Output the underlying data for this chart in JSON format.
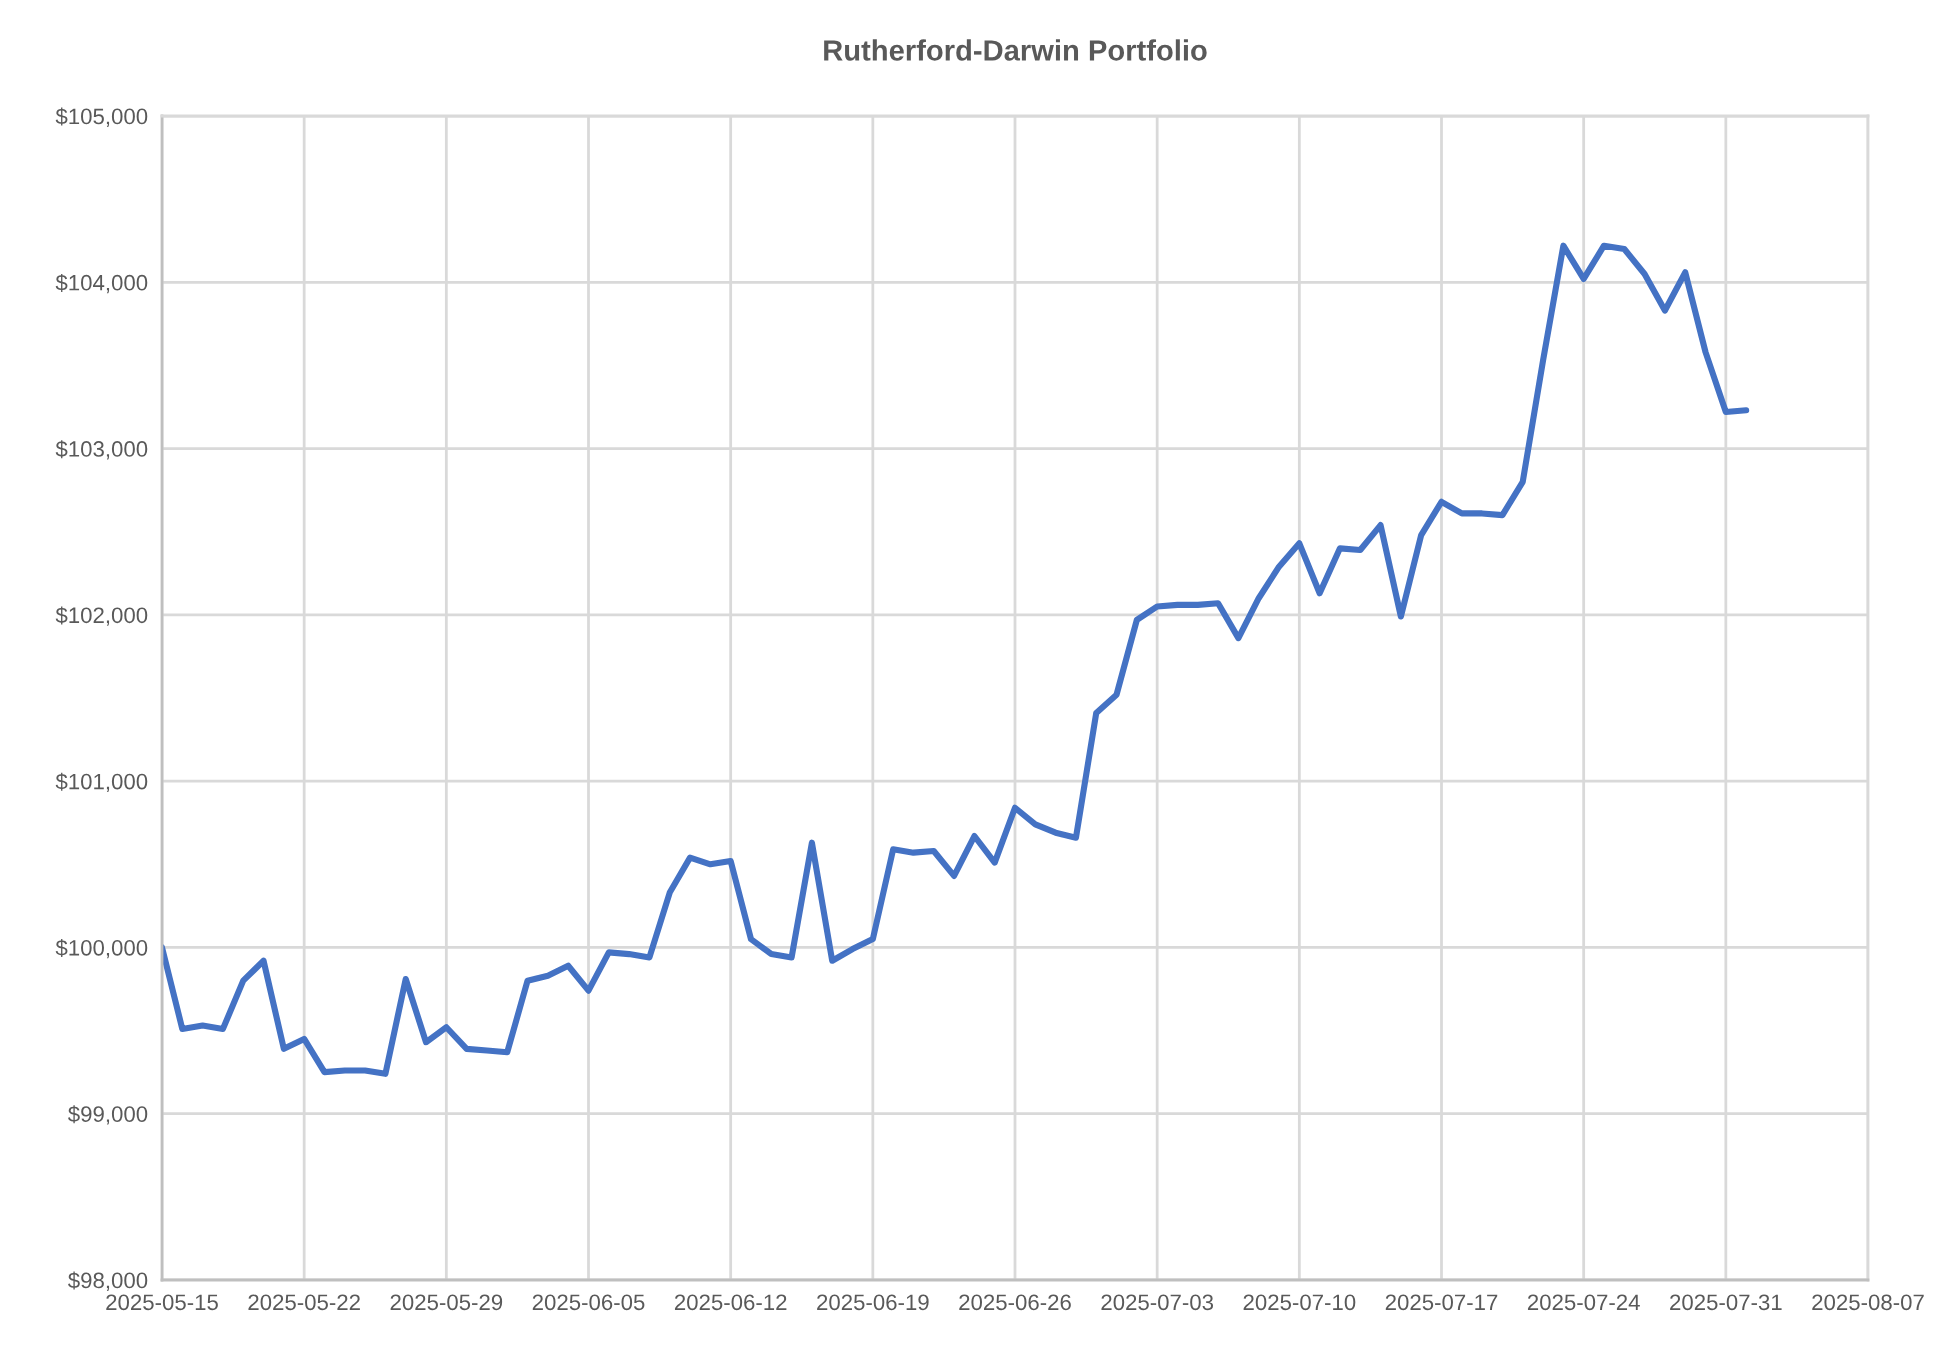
{
  "chart_data": {
    "type": "line",
    "title": "Rutherford-Darwin Portfolio",
    "x": [
      "2025-05-15",
      "2025-05-16",
      "2025-05-17",
      "2025-05-18",
      "2025-05-19",
      "2025-05-20",
      "2025-05-21",
      "2025-05-22",
      "2025-05-23",
      "2025-05-24",
      "2025-05-25",
      "2025-05-26",
      "2025-05-27",
      "2025-05-28",
      "2025-05-29",
      "2025-05-30",
      "2025-05-31",
      "2025-06-01",
      "2025-06-02",
      "2025-06-03",
      "2025-06-04",
      "2025-06-05",
      "2025-06-06",
      "2025-06-07",
      "2025-06-08",
      "2025-06-09",
      "2025-06-10",
      "2025-06-11",
      "2025-06-12",
      "2025-06-13",
      "2025-06-14",
      "2025-06-15",
      "2025-06-16",
      "2025-06-17",
      "2025-06-18",
      "2025-06-19",
      "2025-06-20",
      "2025-06-21",
      "2025-06-22",
      "2025-06-23",
      "2025-06-24",
      "2025-06-25",
      "2025-06-26",
      "2025-06-27",
      "2025-06-28",
      "2025-06-29",
      "2025-06-30",
      "2025-07-01",
      "2025-07-02",
      "2025-07-03",
      "2025-07-04",
      "2025-07-05",
      "2025-07-06",
      "2025-07-07",
      "2025-07-08",
      "2025-07-09",
      "2025-07-10",
      "2025-07-11",
      "2025-07-12",
      "2025-07-13",
      "2025-07-14",
      "2025-07-15",
      "2025-07-16",
      "2025-07-17",
      "2025-07-18",
      "2025-07-19",
      "2025-07-20",
      "2025-07-21",
      "2025-07-22",
      "2025-07-23",
      "2025-07-24",
      "2025-07-25",
      "2025-07-26",
      "2025-07-27",
      "2025-07-28",
      "2025-07-29",
      "2025-07-30",
      "2025-07-31",
      "2025-08-01"
    ],
    "series": [
      {
        "color": "#4472c4",
        "values": [
          100000,
          99510,
          99530,
          99510,
          99800,
          99920,
          99390,
          99450,
          99250,
          99260,
          99260,
          99240,
          99810,
          99430,
          99520,
          99390,
          99380,
          99370,
          99800,
          99830,
          99890,
          99740,
          99970,
          99960,
          99940,
          100330,
          100540,
          100500,
          100520,
          100050,
          99960,
          99940,
          100630,
          99920,
          99990,
          100050,
          100590,
          100570,
          100580,
          100430,
          100670,
          100510,
          100840,
          100740,
          100690,
          100660,
          101410,
          101520,
          101970,
          102050,
          102060,
          102060,
          102070,
          101860,
          102100,
          102290,
          102430,
          102130,
          102400,
          102390,
          102540,
          101990,
          102480,
          102680,
          102610,
          102610,
          102600,
          102800,
          103530,
          104220,
          104020,
          104220,
          104200,
          104050,
          103830,
          104060,
          103580,
          103220,
          103230
        ]
      }
    ],
    "xlim": [
      "2025-05-15",
      "2025-08-07"
    ],
    "xticks": [
      "2025-05-15",
      "2025-05-22",
      "2025-05-29",
      "2025-06-05",
      "2025-06-12",
      "2025-06-19",
      "2025-06-26",
      "2025-07-03",
      "2025-07-10",
      "2025-07-17",
      "2025-07-24",
      "2025-07-31",
      "2025-08-07"
    ],
    "ylim": [
      98000,
      105000
    ],
    "yticks": [
      {
        "value": 98000,
        "label": "$98,000"
      },
      {
        "value": 99000,
        "label": "$99,000"
      },
      {
        "value": 100000,
        "label": "$100,000"
      },
      {
        "value": 101000,
        "label": "$101,000"
      },
      {
        "value": 102000,
        "label": "$102,000"
      },
      {
        "value": 103000,
        "label": "$103,000"
      },
      {
        "value": 104000,
        "label": "$104,000"
      },
      {
        "value": 105000,
        "label": "$105,000"
      }
    ],
    "grid": true,
    "marker": "none",
    "line_style": "solid"
  }
}
